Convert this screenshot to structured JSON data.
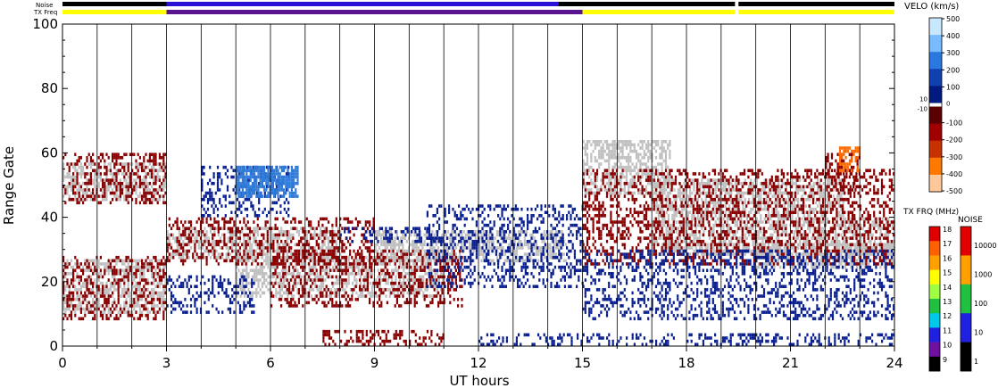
{
  "chart_data": {
    "type": "heatmap",
    "title": "",
    "xlabel": "UT hours",
    "ylabel": "Range Gate",
    "xlim": [
      0,
      24
    ],
    "ylim": [
      0,
      100
    ],
    "x_ticks": [
      "0",
      "3",
      "6",
      "9",
      "12",
      "15",
      "18",
      "21",
      "24"
    ],
    "y_ticks": [
      "0",
      "20",
      "40",
      "60",
      "80",
      "100"
    ],
    "grid": "vertical lines every hour",
    "top_strips": [
      {
        "label": "Noise",
        "segments": [
          {
            "from": 0,
            "to": 3,
            "color": "#000000"
          },
          {
            "from": 3,
            "to": 14.3,
            "color": "#2a0fd8"
          },
          {
            "from": 14.3,
            "to": 19.4,
            "color": "#000000"
          },
          {
            "from": 19.5,
            "to": 24,
            "color": "#000000"
          }
        ]
      },
      {
        "label": "TX Freq",
        "segments": [
          {
            "from": 0,
            "to": 3,
            "color": "#ffff00"
          },
          {
            "from": 3,
            "to": 15,
            "color": "#5a1490"
          },
          {
            "from": 15,
            "to": 19.4,
            "color": "#ffff00"
          },
          {
            "from": 19.5,
            "to": 24,
            "color": "#ffff00"
          }
        ]
      }
    ],
    "velocity_colorbar": {
      "title": "VELO (km/s)",
      "positive_ticks": [
        "500",
        "400",
        "300",
        "200",
        "100"
      ],
      "center_ticks": [
        "10",
        "0",
        "-10"
      ],
      "negative_ticks": [
        "-100",
        "-200",
        "-300",
        "-400",
        "-500"
      ],
      "colors": [
        "#c8e8ff",
        "#78bcff",
        "#2a78e0",
        "#1040b0",
        "#001a80",
        "#5a0000",
        "#a00000",
        "#c83200",
        "#ff7800",
        "#ffc89a"
      ]
    },
    "txfreq_colorbar": {
      "title": "TX FRQ (MHz)",
      "ticks": [
        "18",
        "17",
        "16",
        "15",
        "14",
        "13",
        "12",
        "11",
        "10",
        "9"
      ],
      "colors": [
        "#e00000",
        "#ff6000",
        "#ffa000",
        "#ffff00",
        "#a0ff40",
        "#20c040",
        "#00c8e8",
        "#2020e0",
        "#7010a0",
        "#000000"
      ]
    },
    "noise_colorbar": {
      "title": "NOISE",
      "ticks": [
        "10000",
        "1000",
        "100",
        "10",
        "1"
      ],
      "colors": [
        "#e00000",
        "#ffa000",
        "#20c040",
        "#2020e0",
        "#000000"
      ]
    },
    "series": [
      {
        "kind": "ground_scatter",
        "color": "#c0c0c0",
        "regions": [
          {
            "t0": 0,
            "t1": 3,
            "g0": 10,
            "g1": 27
          },
          {
            "t0": 0,
            "t1": 3,
            "g0": 45,
            "g1": 57
          },
          {
            "t0": 3,
            "t1": 8,
            "g0": 27,
            "g1": 37
          },
          {
            "t0": 5,
            "t1": 11,
            "g0": 15,
            "g1": 28
          },
          {
            "t0": 9,
            "t1": 14.5,
            "g0": 26,
            "g1": 36
          },
          {
            "t0": 15,
            "t1": 17.5,
            "g0": 47,
            "g1": 64
          },
          {
            "t0": 17,
            "t1": 22.5,
            "g0": 40,
            "g1": 52
          },
          {
            "t0": 17,
            "t1": 24,
            "g0": 28,
            "g1": 40
          },
          {
            "t0": 20,
            "t1": 24,
            "g0": 24,
            "g1": 32
          }
        ]
      },
      {
        "kind": "negative_velocity",
        "color": "#8a0000",
        "regions": [
          {
            "t0": 0,
            "t1": 3,
            "g0": 8,
            "g1": 28
          },
          {
            "t0": 0,
            "t1": 3,
            "g0": 44,
            "g1": 60
          },
          {
            "t0": 3,
            "t1": 9,
            "g0": 25,
            "g1": 40
          },
          {
            "t0": 6,
            "t1": 11.5,
            "g0": 12,
            "g1": 30
          },
          {
            "t0": 7.5,
            "t1": 11,
            "g0": 0,
            "g1": 5
          },
          {
            "t0": 15,
            "t1": 24,
            "g0": 25,
            "g1": 55
          },
          {
            "t0": 22,
            "t1": 23,
            "g0": 48,
            "g1": 60
          }
        ]
      },
      {
        "kind": "positive_velocity",
        "color": "#0a2090",
        "regions": [
          {
            "t0": 4,
            "t1": 6.5,
            "g0": 40,
            "g1": 56
          },
          {
            "t0": 3,
            "t1": 5.5,
            "g0": 10,
            "g1": 22
          },
          {
            "t0": 10.5,
            "t1": 15,
            "g0": 18,
            "g1": 44
          },
          {
            "t0": 8,
            "t1": 11,
            "g0": 32,
            "g1": 37
          },
          {
            "t0": 12,
            "t1": 24,
            "g0": 0,
            "g1": 4
          },
          {
            "t0": 15,
            "t1": 24,
            "g0": 8,
            "g1": 30
          }
        ]
      },
      {
        "kind": "positive_velocity_strong",
        "color": "#2f7ad8",
        "regions": [
          {
            "t0": 5,
            "t1": 6.8,
            "g0": 46,
            "g1": 56
          }
        ]
      },
      {
        "kind": "negative_velocity_strong",
        "color": "#ff6a00",
        "regions": [
          {
            "t0": 22.4,
            "t1": 23,
            "g0": 54,
            "g1": 62
          }
        ]
      }
    ]
  }
}
